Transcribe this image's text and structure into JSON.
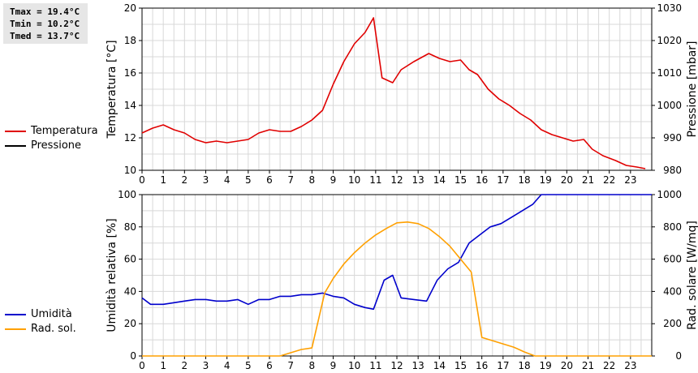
{
  "stats": {
    "tmax": "Tmax = 19.4°C",
    "tmin": "Tmin = 10.2°C",
    "tmed": "Tmed = 13.7°C"
  },
  "colors": {
    "temperature": "#e00000",
    "pressure": "#000000",
    "humidity": "#0000cc",
    "radiation": "#ffa000",
    "grid": "#d8d8d8"
  },
  "legend_top": [
    {
      "label": "Temperatura",
      "color": "#e00000"
    },
    {
      "label": "Pressione",
      "color": "#000000"
    }
  ],
  "legend_bottom": [
    {
      "label": "Umidità",
      "color": "#0000cc"
    },
    {
      "label": "Rad. sol.",
      "color": "#ffa000"
    }
  ],
  "chart_data": [
    {
      "type": "line",
      "ylabel": "Temperatura [°C]",
      "y2label": "Pressione [mbar]",
      "xlim": [
        0,
        24
      ],
      "ylim": [
        10,
        20
      ],
      "y2lim": [
        980,
        1030
      ],
      "xticks": [
        "0",
        "1",
        "2",
        "3",
        "4",
        "5",
        "6",
        "7",
        "8",
        "9",
        "10",
        "11",
        "12",
        "13",
        "14",
        "15",
        "16",
        "17",
        "18",
        "19",
        "20",
        "21",
        "22",
        "23"
      ],
      "yticks": [
        "10",
        "12",
        "14",
        "16",
        "18",
        "20"
      ],
      "y2ticks": [
        "980",
        "990",
        "1000",
        "1010",
        "1020",
        "1030"
      ],
      "grid": true,
      "series": [
        {
          "name": "Temperatura",
          "axis": "left",
          "color": "#e00000",
          "x": [
            0,
            0.5,
            1,
            1.5,
            2,
            2.5,
            3,
            3.5,
            4,
            4.5,
            5,
            5.5,
            6,
            6.5,
            7,
            7.5,
            8,
            8.5,
            9,
            9.5,
            10,
            10.5,
            10.9,
            11.3,
            11.8,
            12.2,
            12.8,
            13.5,
            14,
            14.5,
            15,
            15.4,
            15.8,
            16.3,
            16.8,
            17.3,
            17.8,
            18.3,
            18.8,
            19.3,
            19.8,
            20.3,
            20.8,
            21.2,
            21.7,
            22.3,
            22.8,
            23.3,
            23.7
          ],
          "y": [
            12.3,
            12.6,
            12.8,
            12.5,
            12.3,
            11.9,
            11.7,
            11.8,
            11.7,
            11.8,
            11.9,
            12.3,
            12.5,
            12.4,
            12.4,
            12.7,
            13.1,
            13.7,
            15.3,
            16.7,
            17.8,
            18.5,
            19.4,
            15.7,
            15.4,
            16.2,
            16.7,
            17.2,
            16.9,
            16.7,
            16.8,
            16.2,
            15.9,
            15.0,
            14.4,
            14.0,
            13.5,
            13.1,
            12.5,
            12.2,
            12.0,
            11.8,
            11.9,
            11.3,
            10.9,
            10.6,
            10.3,
            10.2,
            10.1
          ]
        },
        {
          "name": "Pressione",
          "axis": "right",
          "color": "#000000",
          "x": [],
          "y": []
        }
      ]
    },
    {
      "type": "line",
      "ylabel": "Umidità relativa [%]",
      "y2label": "Rad. solare [W/mq]",
      "xlim": [
        0,
        24
      ],
      "ylim": [
        0,
        100
      ],
      "y2lim": [
        0,
        1000
      ],
      "xticks": [
        "0",
        "1",
        "2",
        "3",
        "4",
        "5",
        "6",
        "7",
        "8",
        "9",
        "10",
        "11",
        "12",
        "13",
        "14",
        "15",
        "16",
        "17",
        "18",
        "19",
        "20",
        "21",
        "22",
        "23"
      ],
      "yticks": [
        "0",
        "20",
        "40",
        "60",
        "80",
        "100"
      ],
      "y2ticks": [
        "0",
        "200",
        "400",
        "600",
        "800",
        "1000"
      ],
      "grid": true,
      "series": [
        {
          "name": "Umidità",
          "axis": "left",
          "color": "#0000cc",
          "x": [
            0,
            0.4,
            1,
            1.5,
            2,
            2.5,
            3,
            3.5,
            4,
            4.5,
            5,
            5.5,
            6,
            6.5,
            7,
            7.5,
            8,
            8.5,
            9,
            9.5,
            10,
            10.5,
            10.9,
            11.4,
            11.8,
            12.2,
            12.8,
            13.4,
            13.9,
            14.4,
            14.9,
            15.4,
            15.9,
            16.4,
            16.9,
            17.4,
            17.9,
            18.4,
            18.8,
            19.2,
            20,
            21,
            22,
            23,
            24
          ],
          "y": [
            36,
            32,
            32,
            33,
            34,
            35,
            35,
            34,
            34,
            35,
            32,
            35,
            35,
            37,
            37,
            38,
            38,
            39,
            37,
            36,
            32,
            30,
            29,
            47,
            50,
            36,
            35,
            34,
            47,
            54,
            58,
            70,
            75,
            80,
            82,
            86,
            90,
            94,
            100,
            100,
            100,
            100,
            100,
            100,
            100
          ]
        },
        {
          "name": "Rad. sol.",
          "axis": "right",
          "color": "#ffa000",
          "x": [
            0,
            6.5,
            7,
            7.5,
            8,
            8.6,
            9,
            9.5,
            10,
            10.5,
            11,
            11.5,
            12,
            12.5,
            13,
            13.5,
            14,
            14.5,
            15,
            15.5,
            16,
            16.5,
            17,
            17.5,
            18,
            18.5,
            19,
            20,
            21,
            22,
            23,
            24
          ],
          "y": [
            0,
            0,
            20,
            40,
            50,
            390,
            480,
            570,
            640,
            700,
            750,
            790,
            825,
            830,
            820,
            790,
            740,
            680,
            600,
            520,
            115,
            95,
            75,
            55,
            25,
            0,
            0,
            0,
            0,
            0,
            0,
            0
          ]
        }
      ]
    }
  ]
}
